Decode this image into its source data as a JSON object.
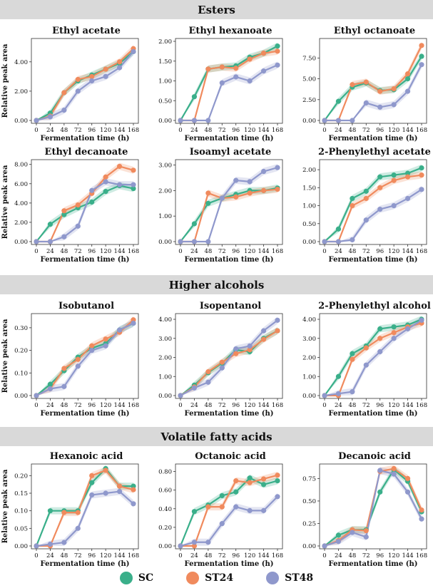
{
  "sections": [
    {
      "title": "Esters"
    },
    {
      "title": "Higher alcohols"
    },
    {
      "title": "Volatile fatty acids"
    }
  ],
  "legend": [
    {
      "name": "SC",
      "color": "#3aaf8a"
    },
    {
      "name": "ST24",
      "color": "#f08a5d"
    },
    {
      "name": "ST48",
      "color": "#8f98cc"
    }
  ],
  "chart_data": [
    {
      "type": "line",
      "title": "Ethyl acetate",
      "xlabel": "Fermentation time (h)",
      "ylabel": "Relative peak area",
      "categories": [
        "0",
        "24",
        "48",
        "72",
        "96",
        "120",
        "144",
        "168"
      ],
      "yticks": [
        "0.00",
        "2.00",
        "4.00"
      ],
      "ylim": [
        0,
        5.4
      ],
      "series": [
        {
          "name": "SC",
          "values": [
            0,
            0.5,
            1.9,
            2.7,
            3.1,
            3.5,
            3.9,
            4.7
          ]
        },
        {
          "name": "ST24",
          "values": [
            0,
            0.3,
            1.9,
            2.8,
            3.0,
            3.5,
            4.0,
            4.9
          ]
        },
        {
          "name": "ST48",
          "values": [
            0,
            0.25,
            0.7,
            2.0,
            2.7,
            3.0,
            3.6,
            4.7
          ]
        }
      ]
    },
    {
      "type": "line",
      "title": "Ethyl hexanoate",
      "xlabel": "Fermentation time (h)",
      "ylabel": "",
      "categories": [
        "0",
        "24",
        "48",
        "72",
        "96",
        "120",
        "144",
        "168"
      ],
      "yticks": [
        "0.00",
        "0.50",
        "1.00",
        "1.50",
        "2.00"
      ],
      "ylim": [
        0,
        2.0
      ],
      "series": [
        {
          "name": "SC",
          "values": [
            0,
            0.6,
            1.3,
            1.35,
            1.38,
            1.6,
            1.7,
            1.88
          ]
        },
        {
          "name": "ST24",
          "values": [
            0,
            0,
            1.3,
            1.35,
            1.32,
            1.55,
            1.7,
            1.75
          ]
        },
        {
          "name": "ST48",
          "values": [
            0,
            0,
            0,
            0.95,
            1.1,
            1.0,
            1.25,
            1.4
          ]
        }
      ]
    },
    {
      "type": "line",
      "title": "Ethyl octanoate",
      "xlabel": "Fermentation time (h)",
      "ylabel": "",
      "categories": [
        "0",
        "24",
        "48",
        "72",
        "96",
        "120",
        "144",
        "168"
      ],
      "yticks": [
        "0.00",
        "2.50",
        "5.00",
        "7.50"
      ],
      "ylim": [
        0,
        9.5
      ],
      "series": [
        {
          "name": "SC",
          "values": [
            0,
            2.3,
            4.0,
            4.5,
            3.6,
            3.7,
            5.0,
            7.7
          ]
        },
        {
          "name": "ST24",
          "values": [
            0,
            0,
            4.3,
            4.6,
            3.5,
            3.8,
            5.6,
            9.0
          ]
        },
        {
          "name": "ST48",
          "values": [
            0,
            0,
            0,
            2.1,
            1.6,
            1.9,
            3.5,
            6.7
          ]
        }
      ]
    },
    {
      "type": "line",
      "title": "Ethyl decanoate",
      "xlabel": "Fermentation time (h)",
      "ylabel": "Relative peak area",
      "categories": [
        "0",
        "24",
        "48",
        "72",
        "96",
        "120",
        "144",
        "168"
      ],
      "yticks": [
        "0.00",
        "2.00",
        "4.00",
        "6.00",
        "8.00"
      ],
      "ylim": [
        0,
        8.2
      ],
      "series": [
        {
          "name": "SC",
          "values": [
            0,
            1.8,
            2.8,
            3.5,
            4.1,
            5.2,
            5.8,
            5.5
          ]
        },
        {
          "name": "ST24",
          "values": [
            0,
            0,
            3.2,
            3.8,
            5.0,
            6.7,
            7.8,
            7.4
          ]
        },
        {
          "name": "ST48",
          "values": [
            0,
            0,
            0.5,
            1.6,
            5.3,
            6.2,
            5.9,
            5.9
          ]
        }
      ]
    },
    {
      "type": "line",
      "title": "Isoamyl acetate",
      "xlabel": "Fermentation time (h)",
      "ylabel": "",
      "categories": [
        "0",
        "24",
        "48",
        "72",
        "96",
        "120",
        "144",
        "168"
      ],
      "yticks": [
        "0.00",
        "1.00",
        "2.00",
        "3.00"
      ],
      "ylim": [
        0,
        3.1
      ],
      "series": [
        {
          "name": "SC",
          "values": [
            0,
            0.7,
            1.5,
            1.7,
            1.85,
            2.0,
            2.0,
            2.1
          ]
        },
        {
          "name": "ST24",
          "values": [
            0,
            0,
            1.9,
            1.7,
            1.75,
            1.9,
            2.0,
            2.05
          ]
        },
        {
          "name": "ST48",
          "values": [
            0,
            0,
            0,
            1.7,
            2.4,
            2.35,
            2.75,
            2.9
          ]
        }
      ]
    },
    {
      "type": "line",
      "title": "2-Phenylethyl acetate",
      "xlabel": "Fermentation time (h)",
      "ylabel": "",
      "categories": [
        "0",
        "24",
        "48",
        "72",
        "96",
        "120",
        "144",
        "168"
      ],
      "yticks": [
        "0.00",
        "0.50",
        "1.00",
        "1.50",
        "2.00"
      ],
      "ylim": [
        0,
        2.2
      ],
      "series": [
        {
          "name": "SC",
          "values": [
            0,
            0.35,
            1.2,
            1.4,
            1.8,
            1.85,
            1.9,
            2.05
          ]
        },
        {
          "name": "ST24",
          "values": [
            0,
            0,
            1.0,
            1.2,
            1.5,
            1.7,
            1.8,
            1.85
          ]
        },
        {
          "name": "ST48",
          "values": [
            0,
            0,
            0.05,
            0.6,
            0.9,
            1.0,
            1.2,
            1.45
          ]
        }
      ]
    },
    {
      "type": "line",
      "title": "Isobutanol",
      "xlabel": "Fermentation time (h)",
      "ylabel": "Relative peak area",
      "categories": [
        "0",
        "24",
        "48",
        "72",
        "96",
        "120",
        "144",
        "168"
      ],
      "yticks": [
        "0.00",
        "0.10",
        "0.20",
        "0.30"
      ],
      "ylim": [
        0,
        0.35
      ],
      "series": [
        {
          "name": "SC",
          "values": [
            0,
            0.05,
            0.11,
            0.17,
            0.21,
            0.23,
            0.29,
            0.32
          ]
        },
        {
          "name": "ST24",
          "values": [
            0,
            0.03,
            0.12,
            0.16,
            0.22,
            0.25,
            0.28,
            0.335
          ]
        },
        {
          "name": "ST48",
          "values": [
            0,
            0.03,
            0.04,
            0.13,
            0.2,
            0.22,
            0.29,
            0.32
          ]
        }
      ]
    },
    {
      "type": "line",
      "title": "Isopentanol",
      "xlabel": "Fermentation time (h)",
      "ylabel": "",
      "categories": [
        "0",
        "24",
        "48",
        "72",
        "96",
        "120",
        "144",
        "168"
      ],
      "yticks": [
        "0.00",
        "1.00",
        "2.00",
        "3.00",
        "4.00"
      ],
      "ylim": [
        0,
        4.15
      ],
      "series": [
        {
          "name": "SC",
          "values": [
            0,
            0.55,
            1.2,
            1.7,
            2.4,
            2.3,
            3.0,
            3.4
          ]
        },
        {
          "name": "ST24",
          "values": [
            0,
            0.45,
            1.25,
            1.75,
            2.2,
            2.4,
            2.95,
            3.4
          ]
        },
        {
          "name": "ST48",
          "values": [
            0,
            0.4,
            0.7,
            1.45,
            2.45,
            2.6,
            3.4,
            3.95
          ]
        }
      ]
    },
    {
      "type": "line",
      "title": "2-Phenylethyl alcohol",
      "xlabel": "Fermentation time (h)",
      "ylabel": "",
      "categories": [
        "0",
        "24",
        "48",
        "72",
        "96",
        "120",
        "144",
        "168"
      ],
      "yticks": [
        "0.00",
        "1.00",
        "2.00",
        "3.00",
        "4.00"
      ],
      "ylim": [
        0,
        4.15
      ],
      "series": [
        {
          "name": "SC",
          "values": [
            0,
            1.0,
            2.2,
            2.6,
            3.5,
            3.6,
            3.7,
            4.0
          ]
        },
        {
          "name": "ST24",
          "values": [
            0,
            0,
            1.9,
            2.5,
            3.0,
            3.3,
            3.6,
            3.8
          ]
        },
        {
          "name": "ST48",
          "values": [
            0,
            0.1,
            0.2,
            1.6,
            2.3,
            3.0,
            3.5,
            3.95
          ]
        }
      ]
    },
    {
      "type": "line",
      "title": "Hexanoic acid",
      "xlabel": "Fermentation time (h)",
      "ylabel": "Relative peak area",
      "categories": [
        "0",
        "24",
        "48",
        "72",
        "96",
        "120",
        "144",
        "168"
      ],
      "yticks": [
        "0.00",
        "0.05",
        "0.10",
        "0.15",
        "0.20"
      ],
      "ylim": [
        0,
        0.225
      ],
      "series": [
        {
          "name": "SC",
          "values": [
            0,
            0.1,
            0.1,
            0.1,
            0.18,
            0.22,
            0.17,
            0.17
          ]
        },
        {
          "name": "ST24",
          "values": [
            0,
            0,
            0.095,
            0.095,
            0.2,
            0.215,
            0.17,
            0.16
          ]
        },
        {
          "name": "ST48",
          "values": [
            0,
            0.005,
            0.01,
            0.05,
            0.145,
            0.15,
            0.155,
            0.12
          ]
        }
      ]
    },
    {
      "type": "line",
      "title": "Octanoic acid",
      "xlabel": "Fermentation time (h)",
      "ylabel": "",
      "categories": [
        "0",
        "24",
        "48",
        "72",
        "96",
        "120",
        "144",
        "168"
      ],
      "yticks": [
        "0.00",
        "0.20",
        "0.40",
        "0.60",
        "0.80"
      ],
      "ylim": [
        0,
        0.85
      ],
      "series": [
        {
          "name": "SC",
          "values": [
            0,
            0.37,
            0.44,
            0.54,
            0.58,
            0.73,
            0.66,
            0.7
          ]
        },
        {
          "name": "ST24",
          "values": [
            0,
            0,
            0.42,
            0.42,
            0.7,
            0.68,
            0.72,
            0.76
          ]
        },
        {
          "name": "ST48",
          "values": [
            0,
            0.04,
            0.04,
            0.24,
            0.42,
            0.38,
            0.38,
            0.53
          ]
        }
      ]
    },
    {
      "type": "line",
      "title": "Decanoic acid",
      "xlabel": "Fermentation time (h)",
      "ylabel": "",
      "categories": [
        "0",
        "24",
        "48",
        "72",
        "96",
        "120",
        "144",
        "168"
      ],
      "yticks": [
        "0.00",
        "0.25",
        "0.50",
        "0.75"
      ],
      "ylim": [
        0,
        0.88
      ],
      "series": [
        {
          "name": "SC",
          "values": [
            0,
            0.12,
            0.18,
            0.18,
            0.6,
            0.85,
            0.72,
            0.38
          ]
        },
        {
          "name": "ST24",
          "values": [
            0,
            0.06,
            0.18,
            0.17,
            0.83,
            0.86,
            0.75,
            0.4
          ]
        },
        {
          "name": "ST48",
          "values": [
            0,
            0.05,
            0.15,
            0.1,
            0.84,
            0.8,
            0.6,
            0.3
          ]
        }
      ]
    }
  ]
}
